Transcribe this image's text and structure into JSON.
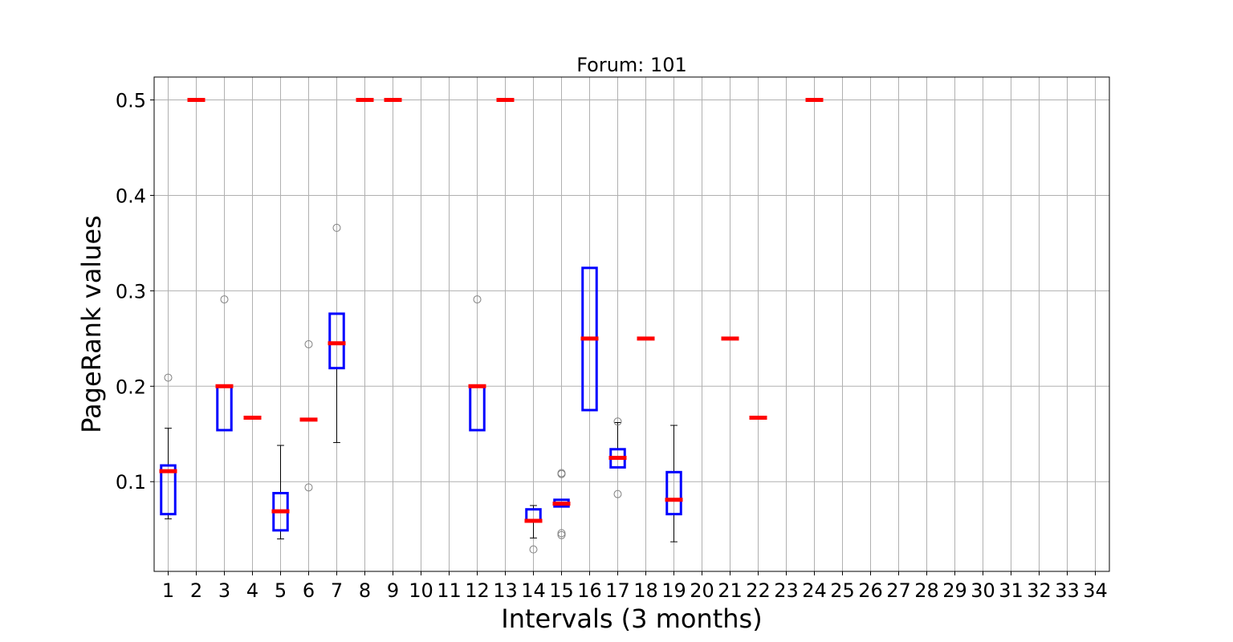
{
  "chart_data": {
    "type": "boxplot",
    "title": "Forum: 101",
    "xlabel": "Intervals (3 months)",
    "ylabel": "PageRank values",
    "categories": [
      "1",
      "2",
      "3",
      "4",
      "5",
      "6",
      "7",
      "8",
      "9",
      "10",
      "11",
      "12",
      "13",
      "14",
      "15",
      "16",
      "17",
      "18",
      "19",
      "20",
      "21",
      "22",
      "23",
      "24",
      "25",
      "26",
      "27",
      "28",
      "29",
      "30",
      "31",
      "32",
      "33",
      "34"
    ],
    "xlim": [
      0.5,
      34.5
    ],
    "ylim": [
      0.006,
      0.524
    ],
    "yticks": [
      0.1,
      0.2,
      0.3,
      0.4,
      0.5
    ],
    "ytick_labels": [
      "0.1",
      "0.2",
      "0.3",
      "0.4",
      "0.5"
    ],
    "grid": true,
    "colors": {
      "box": "#0000ff",
      "median": "#ff0000",
      "whisker": "#000000",
      "outlier": "#808080",
      "grid": "#b0b0b0"
    },
    "boxes": [
      {
        "category": "1",
        "q1": 0.066,
        "median": 0.111,
        "q3": 0.117,
        "whislo": 0.061,
        "whishi": 0.156,
        "fliers": [
          0.209
        ]
      },
      {
        "category": "2",
        "q1": 0.5,
        "median": 0.5,
        "q3": 0.5,
        "whislo": 0.5,
        "whishi": 0.5,
        "fliers": []
      },
      {
        "category": "3",
        "q1": 0.154,
        "median": 0.2,
        "q3": 0.2,
        "whislo": 0.154,
        "whishi": 0.2,
        "fliers": [
          0.291
        ]
      },
      {
        "category": "4",
        "q1": 0.167,
        "median": 0.167,
        "q3": 0.167,
        "whislo": 0.167,
        "whishi": 0.167,
        "fliers": []
      },
      {
        "category": "5",
        "q1": 0.049,
        "median": 0.069,
        "q3": 0.088,
        "whislo": 0.04,
        "whishi": 0.138,
        "fliers": []
      },
      {
        "category": "6",
        "q1": 0.165,
        "median": 0.165,
        "q3": 0.165,
        "whislo": 0.165,
        "whishi": 0.165,
        "fliers": [
          0.244,
          0.094
        ]
      },
      {
        "category": "7",
        "q1": 0.219,
        "median": 0.245,
        "q3": 0.276,
        "whislo": 0.141,
        "whishi": 0.276,
        "fliers": [
          0.366
        ]
      },
      {
        "category": "8",
        "q1": 0.5,
        "median": 0.5,
        "q3": 0.5,
        "whislo": 0.5,
        "whishi": 0.5,
        "fliers": []
      },
      {
        "category": "9",
        "q1": 0.5,
        "median": 0.5,
        "q3": 0.5,
        "whislo": 0.5,
        "whishi": 0.5,
        "fliers": []
      },
      {
        "category": "12",
        "q1": 0.154,
        "median": 0.2,
        "q3": 0.2,
        "whislo": 0.154,
        "whishi": 0.2,
        "fliers": [
          0.291
        ]
      },
      {
        "category": "13",
        "q1": 0.5,
        "median": 0.5,
        "q3": 0.5,
        "whislo": 0.5,
        "whishi": 0.5,
        "fliers": []
      },
      {
        "category": "14",
        "q1": 0.059,
        "median": 0.059,
        "q3": 0.071,
        "whislo": 0.041,
        "whishi": 0.075,
        "fliers": [
          0.029
        ]
      },
      {
        "category": "15",
        "q1": 0.074,
        "median": 0.077,
        "q3": 0.081,
        "whislo": 0.074,
        "whishi": 0.081,
        "fliers": [
          0.109,
          0.108,
          0.046,
          0.044
        ]
      },
      {
        "category": "16",
        "q1": 0.175,
        "median": 0.25,
        "q3": 0.324,
        "whislo": 0.175,
        "whishi": 0.324,
        "fliers": []
      },
      {
        "category": "17",
        "q1": 0.115,
        "median": 0.125,
        "q3": 0.134,
        "whislo": 0.115,
        "whishi": 0.162,
        "fliers": [
          0.087,
          0.163
        ]
      },
      {
        "category": "18",
        "q1": 0.25,
        "median": 0.25,
        "q3": 0.25,
        "whislo": 0.25,
        "whishi": 0.25,
        "fliers": []
      },
      {
        "category": "19",
        "q1": 0.066,
        "median": 0.081,
        "q3": 0.11,
        "whislo": 0.037,
        "whishi": 0.159,
        "fliers": []
      },
      {
        "category": "21",
        "q1": 0.25,
        "median": 0.25,
        "q3": 0.25,
        "whislo": 0.25,
        "whishi": 0.25,
        "fliers": []
      },
      {
        "category": "22",
        "q1": 0.167,
        "median": 0.167,
        "q3": 0.167,
        "whislo": 0.167,
        "whishi": 0.167,
        "fliers": []
      },
      {
        "category": "24",
        "q1": 0.5,
        "median": 0.5,
        "q3": 0.5,
        "whislo": 0.5,
        "whishi": 0.5,
        "fliers": []
      }
    ]
  }
}
